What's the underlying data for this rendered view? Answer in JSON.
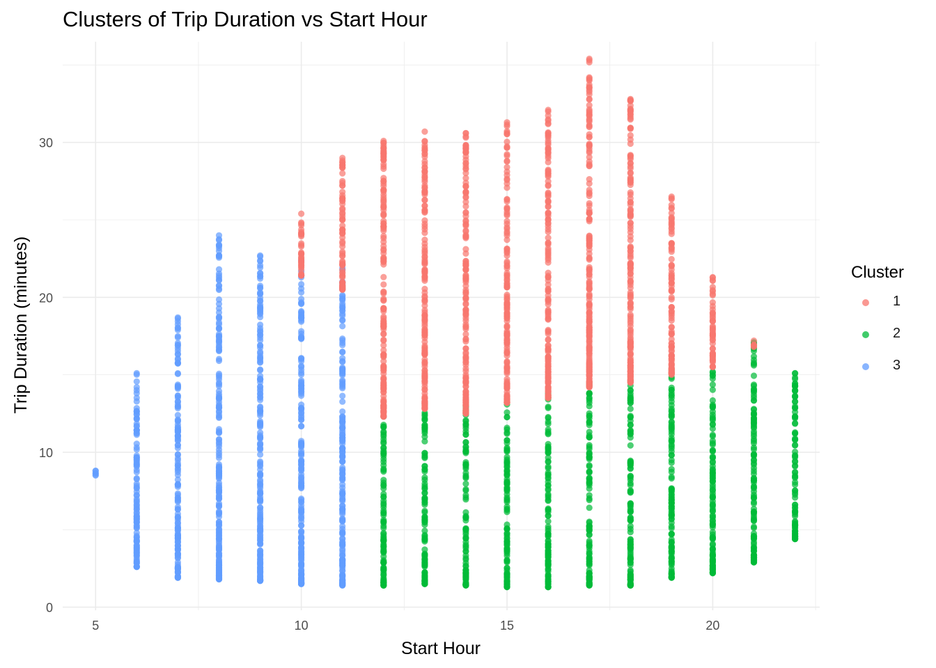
{
  "chart_data": {
    "type": "scatter",
    "title": "Clusters of Trip Duration vs Start Hour",
    "xlabel": "Start Hour",
    "ylabel": "Trip Duration (minutes)",
    "xlim": [
      4.2,
      22.6
    ],
    "ylim": [
      -0.2,
      36.5
    ],
    "x_ticks": [
      5,
      10,
      15,
      20
    ],
    "y_ticks": [
      0,
      10,
      20,
      30
    ],
    "grid": true,
    "legend": {
      "title": "Cluster",
      "position": "right"
    },
    "series": [
      {
        "name": "1",
        "color": "#F8766D",
        "ranges": [
          {
            "x": 10,
            "ymin": 21.4,
            "ymax": 25.4
          },
          {
            "x": 11,
            "ymin": 20.5,
            "ymax": 29.0
          },
          {
            "x": 12,
            "ymin": 12.3,
            "ymax": 30.1
          },
          {
            "x": 13,
            "ymin": 12.8,
            "ymax": 30.7
          },
          {
            "x": 14,
            "ymin": 12.5,
            "ymax": 30.6
          },
          {
            "x": 15,
            "ymin": 13.2,
            "ymax": 31.3
          },
          {
            "x": 16,
            "ymin": 13.5,
            "ymax": 32.1
          },
          {
            "x": 17,
            "ymin": 14.2,
            "ymax": 35.4
          },
          {
            "x": 18,
            "ymin": 14.5,
            "ymax": 32.8
          },
          {
            "x": 19,
            "ymin": 15.0,
            "ymax": 26.5
          },
          {
            "x": 20,
            "ymin": 15.5,
            "ymax": 21.3
          },
          {
            "x": 21,
            "ymin": 16.8,
            "ymax": 17.2
          }
        ]
      },
      {
        "name": "2",
        "color": "#00BA38",
        "ranges": [
          {
            "x": 12,
            "ymin": 1.4,
            "ymax": 12.3
          },
          {
            "x": 13,
            "ymin": 1.5,
            "ymax": 13.1
          },
          {
            "x": 14,
            "ymin": 1.4,
            "ymax": 13.0
          },
          {
            "x": 15,
            "ymin": 1.3,
            "ymax": 13.3
          },
          {
            "x": 16,
            "ymin": 1.3,
            "ymax": 13.8
          },
          {
            "x": 17,
            "ymin": 1.4,
            "ymax": 14.5
          },
          {
            "x": 18,
            "ymin": 1.4,
            "ymax": 14.6
          },
          {
            "x": 19,
            "ymin": 1.9,
            "ymax": 15.3
          },
          {
            "x": 20,
            "ymin": 2.2,
            "ymax": 15.2
          },
          {
            "x": 21,
            "ymin": 2.9,
            "ymax": 17.1
          },
          {
            "x": 22,
            "ymin": 4.4,
            "ymax": 15.1
          }
        ]
      },
      {
        "name": "3",
        "color": "#619CFF",
        "ranges": [
          {
            "x": 5,
            "ymin": 8.5,
            "ymax": 8.8
          },
          {
            "x": 6,
            "ymin": 2.6,
            "ymax": 15.1
          },
          {
            "x": 7,
            "ymin": 1.9,
            "ymax": 18.7
          },
          {
            "x": 8,
            "ymin": 1.8,
            "ymax": 24.0
          },
          {
            "x": 9,
            "ymin": 1.7,
            "ymax": 22.7
          },
          {
            "x": 10,
            "ymin": 1.5,
            "ymax": 22.4
          },
          {
            "x": 11,
            "ymin": 1.4,
            "ymax": 21.9
          }
        ]
      }
    ]
  }
}
